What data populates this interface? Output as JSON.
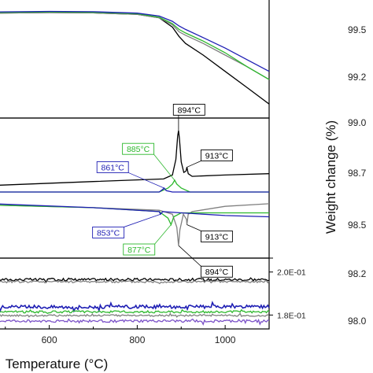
{
  "chart_data": {
    "type": "line",
    "x_axis": {
      "xlabel": "Temperature (°C)",
      "xlim": [
        470,
        1100
      ],
      "ticks": [
        600,
        800,
        1000
      ],
      "tick_labels": [
        "600",
        "800",
        "1000"
      ]
    },
    "panels": [
      {
        "name": "weight",
        "ylim": [
          0,
          1
        ],
        "series": [
          {
            "color": "#000000",
            "x": [
              470,
              600,
              700,
              800,
              850,
              880,
              895,
              910,
              950,
              1000,
              1050,
              1100
            ],
            "y": [
              0.86,
              0.865,
              0.862,
              0.85,
              0.82,
              0.74,
              0.66,
              0.6,
              0.5,
              0.36,
              0.22,
              0.08
            ]
          },
          {
            "color": "#808080",
            "x": [
              470,
              600,
              700,
              800,
              850,
              880,
              895,
              910,
              950,
              1000,
              1050,
              1100
            ],
            "y": [
              0.86,
              0.865,
              0.862,
              0.85,
              0.82,
              0.76,
              0.7,
              0.67,
              0.6,
              0.5,
              0.4,
              0.29
            ]
          },
          {
            "color": "#2db82d",
            "x": [
              470,
              600,
              700,
              800,
              850,
              880,
              895,
              910,
              950,
              1000,
              1050,
              1100
            ],
            "y": [
              0.865,
              0.87,
              0.867,
              0.855,
              0.825,
              0.77,
              0.72,
              0.69,
              0.62,
              0.52,
              0.4,
              0.29
            ]
          },
          {
            "color": "#1f1fb4",
            "x": [
              470,
              600,
              700,
              800,
              850,
              880,
              895,
              910,
              950,
              1000,
              1050,
              1100
            ],
            "y": [
              0.87,
              0.875,
              0.872,
              0.86,
              0.835,
              0.79,
              0.75,
              0.72,
              0.65,
              0.56,
              0.46,
              0.36
            ]
          }
        ]
      },
      {
        "name": "dta",
        "ylim": [
          0,
          1
        ],
        "series": [
          {
            "color": "#000000",
            "x": [
              470,
              700,
              860,
              880,
              888,
              892,
              894,
              896,
              900,
              906,
              911,
              913,
              916,
              925,
              1000,
              1100
            ],
            "y": [
              0.52,
              0.55,
              0.57,
              0.6,
              0.72,
              0.9,
              0.94,
              0.88,
              0.7,
              0.62,
              0.63,
              0.66,
              0.61,
              0.59,
              0.6,
              0.61
            ]
          },
          {
            "color": "#2db82d",
            "x": [
              470,
              700,
              850,
              870,
              880,
              885,
              890,
              900,
              920,
              1000,
              1100
            ],
            "y": [
              0.47,
              0.47,
              0.47,
              0.5,
              0.53,
              0.56,
              0.53,
              0.5,
              0.47,
              0.47,
              0.47
            ]
          },
          {
            "color": "#1f1fb4",
            "x": [
              470,
              700,
              850,
              858,
              861,
              866,
              880,
              1000,
              1100
            ],
            "y": [
              0.47,
              0.47,
              0.47,
              0.49,
              0.5,
              0.48,
              0.47,
              0.47,
              0.47
            ]
          },
          {
            "color": "#808080",
            "x": [
              470,
              700,
              850,
              880,
              890,
              894,
              897,
              905,
              912,
              913,
              916,
              925,
              1000,
              1100
            ],
            "y": [
              0.37,
              0.35,
              0.33,
              0.3,
              0.2,
              0.06,
              0.18,
              0.3,
              0.26,
              0.22,
              0.3,
              0.32,
              0.36,
              0.38
            ]
          },
          {
            "color": "#2db82d",
            "x": [
              470,
              700,
              850,
              870,
              877,
              883,
              900,
              1000,
              1100
            ],
            "y": [
              0.37,
              0.35,
              0.32,
              0.27,
              0.22,
              0.28,
              0.31,
              0.31,
              0.31
            ]
          },
          {
            "color": "#1f1fb4",
            "x": [
              470,
              700,
              850,
              853,
              858,
              900,
              1000,
              1100
            ],
            "y": [
              0.38,
              0.35,
              0.32,
              0.3,
              0.32,
              0.31,
              0.29,
              0.28
            ]
          }
        ],
        "annotations": [
          {
            "text": "894°C",
            "color": "#000000",
            "x": 894,
            "y": 0.94
          },
          {
            "text": "913°C",
            "color": "#000000",
            "x": 913,
            "y": 0.66
          },
          {
            "text": "885°C",
            "color": "#2db82d",
            "x": 885,
            "y": 0.56
          },
          {
            "text": "861°C",
            "color": "#1f1fb4",
            "x": 861,
            "y": 0.5
          },
          {
            "text": "853°C",
            "color": "#1f1fb4",
            "x": 853,
            "y": 0.3
          },
          {
            "text": "877°C",
            "color": "#2db82d",
            "x": 877,
            "y": 0.22
          },
          {
            "text": "913°C",
            "color": "#000000",
            "x": 913,
            "y": 0.22
          },
          {
            "text": "894°C",
            "color": "#000000",
            "x": 894,
            "y": 0.06
          }
        ]
      },
      {
        "name": "noise",
        "ylim": [
          0.175,
          0.205
        ],
        "right_ticks": [
          0.2,
          0.18
        ],
        "right_tick_labels": [
          "2.0E-01",
          "1.8E-01"
        ],
        "series": [
          {
            "color": "#000000",
            "base": 0.1965,
            "amp": 0.0006
          },
          {
            "color": "#808080",
            "base": 0.1955,
            "amp": 0.0005
          },
          {
            "color": "#1f1fb4",
            "base": 0.1838,
            "amp": 0.0008
          },
          {
            "color": "#2db82d",
            "base": 0.1815,
            "amp": 0.0005
          },
          {
            "color": "#808080",
            "base": 0.1798,
            "amp": 0.0004
          },
          {
            "color": "#7b52c8",
            "base": 0.1772,
            "amp": 0.0006
          }
        ]
      }
    ],
    "right_axis": {
      "ylabel": "Weight change (%)",
      "tick_labels": [
        "99.5",
        "99.2",
        "99.0",
        "98.7",
        "98.5",
        "98.2",
        "98.0"
      ]
    }
  }
}
